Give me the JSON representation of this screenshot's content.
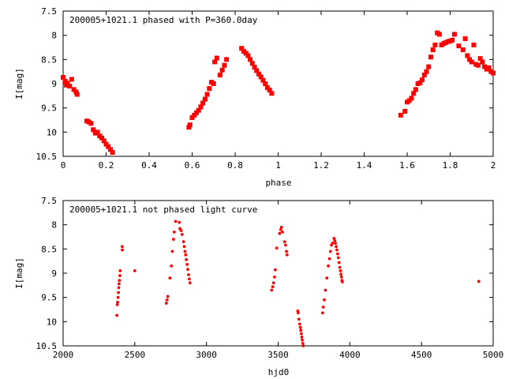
{
  "colors": {
    "points": "#ff0000",
    "axes": "#000000",
    "background": "#ffffff"
  },
  "chart_data": [
    {
      "type": "scatter",
      "title": "200005+1021.1 phased with P=360.0day",
      "xlabel": "phase",
      "ylabel": "I[mag]",
      "xlim": [
        0,
        2
      ],
      "ylim": [
        7.5,
        10.5
      ],
      "y_inverted": true,
      "x_ticks": [
        "0",
        "0.2",
        "0.4",
        "0.6",
        "0.8",
        "1",
        "1.2",
        "1.4",
        "1.6",
        "1.8",
        "2"
      ],
      "y_ticks": [
        "7.5",
        "8",
        "8.5",
        "9",
        "9.5",
        "10",
        "10.5"
      ],
      "grid": false,
      "marker": "filled square",
      "points": [
        [
          0.0,
          8.87
        ],
        [
          0.01,
          8.95
        ],
        [
          0.015,
          9.03
        ],
        [
          0.02,
          8.99
        ],
        [
          0.03,
          9.05
        ],
        [
          0.04,
          8.91
        ],
        [
          0.05,
          9.12
        ],
        [
          0.06,
          9.17
        ],
        [
          0.065,
          9.22
        ],
        [
          0.11,
          9.77
        ],
        [
          0.12,
          9.79
        ],
        [
          0.13,
          9.82
        ],
        [
          0.14,
          9.95
        ],
        [
          0.15,
          10.02
        ],
        [
          0.16,
          10.0
        ],
        [
          0.17,
          10.08
        ],
        [
          0.18,
          10.12
        ],
        [
          0.19,
          10.18
        ],
        [
          0.2,
          10.25
        ],
        [
          0.21,
          10.3
        ],
        [
          0.22,
          10.36
        ],
        [
          0.23,
          10.42
        ],
        [
          0.585,
          9.9
        ],
        [
          0.59,
          9.85
        ],
        [
          0.6,
          9.7
        ],
        [
          0.61,
          9.65
        ],
        [
          0.62,
          9.6
        ],
        [
          0.63,
          9.55
        ],
        [
          0.64,
          9.48
        ],
        [
          0.65,
          9.4
        ],
        [
          0.66,
          9.32
        ],
        [
          0.67,
          9.22
        ],
        [
          0.68,
          9.1
        ],
        [
          0.69,
          8.97
        ],
        [
          0.7,
          9.0
        ],
        [
          0.705,
          8.55
        ],
        [
          0.715,
          8.47
        ],
        [
          0.73,
          8.82
        ],
        [
          0.74,
          8.72
        ],
        [
          0.75,
          8.62
        ],
        [
          0.76,
          8.5
        ],
        [
          0.83,
          8.27
        ],
        [
          0.84,
          8.33
        ],
        [
          0.85,
          8.37
        ],
        [
          0.86,
          8.42
        ],
        [
          0.87,
          8.5
        ],
        [
          0.88,
          8.58
        ],
        [
          0.89,
          8.66
        ],
        [
          0.9,
          8.73
        ],
        [
          0.91,
          8.8
        ],
        [
          0.92,
          8.86
        ],
        [
          0.93,
          8.93
        ],
        [
          0.94,
          9.0
        ],
        [
          0.95,
          9.08
        ],
        [
          0.96,
          9.13
        ],
        [
          0.97,
          9.2
        ],
        [
          1.57,
          9.65
        ],
        [
          1.59,
          9.57
        ],
        [
          1.6,
          9.38
        ],
        [
          1.61,
          9.35
        ],
        [
          1.62,
          9.3
        ],
        [
          1.63,
          9.2
        ],
        [
          1.64,
          9.12
        ],
        [
          1.65,
          9.0
        ],
        [
          1.66,
          8.98
        ],
        [
          1.67,
          8.92
        ],
        [
          1.68,
          8.82
        ],
        [
          1.69,
          8.75
        ],
        [
          1.7,
          8.65
        ],
        [
          1.71,
          8.45
        ],
        [
          1.72,
          8.3
        ],
        [
          1.73,
          8.2
        ],
        [
          1.74,
          7.95
        ],
        [
          1.75,
          7.98
        ],
        [
          1.76,
          8.2
        ],
        [
          1.77,
          8.17
        ],
        [
          1.78,
          8.15
        ],
        [
          1.79,
          8.13
        ],
        [
          1.8,
          8.12
        ],
        [
          1.81,
          8.1
        ],
        [
          1.82,
          7.98
        ],
        [
          1.84,
          8.22
        ],
        [
          1.86,
          8.3
        ],
        [
          1.87,
          8.07
        ],
        [
          1.88,
          8.42
        ],
        [
          1.89,
          8.5
        ],
        [
          1.9,
          8.55
        ],
        [
          1.91,
          8.2
        ],
        [
          1.92,
          8.6
        ],
        [
          1.93,
          8.62
        ],
        [
          1.94,
          8.48
        ],
        [
          1.95,
          8.55
        ],
        [
          1.96,
          8.65
        ],
        [
          1.97,
          8.7
        ],
        [
          1.98,
          8.67
        ],
        [
          1.99,
          8.75
        ],
        [
          2.0,
          8.78
        ]
      ]
    },
    {
      "type": "scatter",
      "title": "200005+1021.1 not phased light curve",
      "xlabel": "hjd0",
      "ylabel": "I[mag]",
      "xlim": [
        2000,
        5000
      ],
      "ylim": [
        7.5,
        10.5
      ],
      "y_inverted": true,
      "x_ticks": [
        "2000",
        "2500",
        "3000",
        "3500",
        "4000",
        "4500",
        "5000"
      ],
      "y_ticks": [
        "7.5",
        "8",
        "8.5",
        "9",
        "9.5",
        "10",
        "10.5"
      ],
      "grid": false,
      "marker": "small dot",
      "points": [
        [
          2375,
          9.87
        ],
        [
          2378,
          9.65
        ],
        [
          2380,
          9.6
        ],
        [
          2383,
          9.5
        ],
        [
          2386,
          9.4
        ],
        [
          2388,
          9.3
        ],
        [
          2390,
          9.22
        ],
        [
          2393,
          9.15
        ],
        [
          2396,
          9.05
        ],
        [
          2398,
          8.95
        ],
        [
          2412,
          8.45
        ],
        [
          2413,
          8.52
        ],
        [
          2500,
          8.95
        ],
        [
          2720,
          9.62
        ],
        [
          2725,
          9.55
        ],
        [
          2730,
          9.48
        ],
        [
          2745,
          9.1
        ],
        [
          2755,
          8.85
        ],
        [
          2762,
          8.55
        ],
        [
          2770,
          8.3
        ],
        [
          2775,
          8.15
        ],
        [
          2785,
          7.93
        ],
        [
          2810,
          7.95
        ],
        [
          2815,
          8.08
        ],
        [
          2823,
          8.12
        ],
        [
          2830,
          8.2
        ],
        [
          2840,
          8.35
        ],
        [
          2845,
          8.45
        ],
        [
          2850,
          8.55
        ],
        [
          2855,
          8.62
        ],
        [
          2860,
          8.72
        ],
        [
          2865,
          8.82
        ],
        [
          2870,
          8.92
        ],
        [
          2875,
          9.03
        ],
        [
          2880,
          9.12
        ],
        [
          2885,
          9.2
        ],
        [
          3455,
          9.35
        ],
        [
          3462,
          9.28
        ],
        [
          3468,
          9.2
        ],
        [
          3475,
          9.08
        ],
        [
          3480,
          8.93
        ],
        [
          3490,
          8.48
        ],
        [
          3510,
          8.18
        ],
        [
          3518,
          8.1
        ],
        [
          3523,
          8.05
        ],
        [
          3530,
          8.15
        ],
        [
          3545,
          8.35
        ],
        [
          3552,
          8.42
        ],
        [
          3558,
          8.55
        ],
        [
          3562,
          8.62
        ],
        [
          3637,
          9.78
        ],
        [
          3640,
          9.82
        ],
        [
          3645,
          9.95
        ],
        [
          3650,
          10.05
        ],
        [
          3655,
          10.12
        ],
        [
          3658,
          10.18
        ],
        [
          3662,
          10.25
        ],
        [
          3665,
          10.32
        ],
        [
          3668,
          10.38
        ],
        [
          3672,
          10.45
        ],
        [
          3675,
          10.5
        ],
        [
          3810,
          9.82
        ],
        [
          3815,
          9.7
        ],
        [
          3822,
          9.55
        ],
        [
          3830,
          9.35
        ],
        [
          3840,
          9.1
        ],
        [
          3850,
          8.85
        ],
        [
          3858,
          8.7
        ],
        [
          3865,
          8.55
        ],
        [
          3872,
          8.42
        ],
        [
          3880,
          8.38
        ],
        [
          3890,
          8.28
        ],
        [
          3895,
          8.33
        ],
        [
          3900,
          8.38
        ],
        [
          3905,
          8.45
        ],
        [
          3910,
          8.52
        ],
        [
          3915,
          8.6
        ],
        [
          3920,
          8.68
        ],
        [
          3925,
          8.78
        ],
        [
          3930,
          8.88
        ],
        [
          3935,
          8.95
        ],
        [
          3938,
          9.02
        ],
        [
          3942,
          9.08
        ],
        [
          3945,
          9.15
        ],
        [
          3948,
          9.18
        ],
        [
          4900,
          9.17
        ]
      ]
    }
  ]
}
